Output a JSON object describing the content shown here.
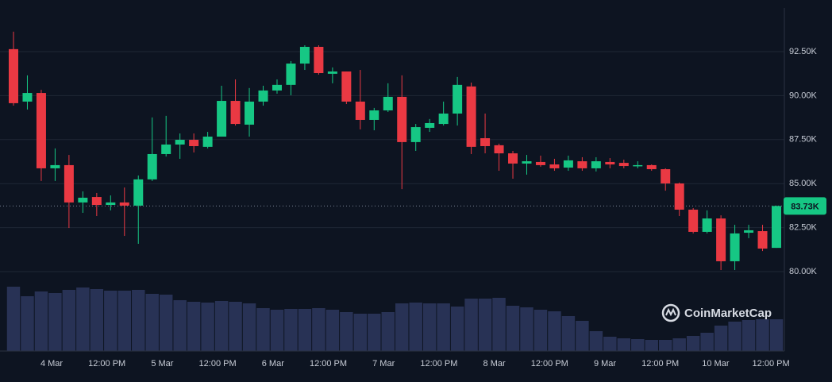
{
  "chart_data": {
    "type": "candlestick",
    "watermark": "CoinMarketCap",
    "up_color": "#16c784",
    "down_color": "#ea3943",
    "volume_color": "#283255",
    "grid": true,
    "ylim": [
      75490,
      94980
    ],
    "yticks": [
      {
        "value": 80000,
        "label": "80.00K"
      },
      {
        "value": 82500,
        "label": "82.50K"
      },
      {
        "value": 85000,
        "label": "85.00K"
      },
      {
        "value": 87500,
        "label": "87.50K"
      },
      {
        "value": 90000,
        "label": "90.00K"
      },
      {
        "value": 92500,
        "label": "92.50K"
      }
    ],
    "xtick_labels": [
      "4 Mar",
      "12:00 PM",
      "5 Mar",
      "12:00 PM",
      "6 Mar",
      "12:00 PM",
      "7 Mar",
      "12:00 PM",
      "8 Mar",
      "12:00 PM",
      "9 Mar",
      "12:00 PM",
      "10 Mar",
      "12:00 PM"
    ],
    "last_price": {
      "value": 83730,
      "label": "83.73K"
    },
    "open": [
      92640,
      89660,
      90150,
      85870,
      86050,
      83930,
      84240,
      83790,
      83930,
      83750,
      85240,
      86680,
      87220,
      87490,
      87090,
      87670,
      89700,
      88350,
      89660,
      90290,
      90610,
      91820,
      92770,
      91240,
      91370,
      89660,
      88620,
      89160,
      89930,
      87360,
      88170,
      88390,
      88980,
      90520,
      87580,
      87180,
      86720,
      86140,
      86230,
      86090,
      85910,
      86270,
      85870,
      86230,
      86180,
      86000,
      86050,
      85820,
      85010,
      83520,
      82260,
      83020,
      80590,
      82210,
      82300,
      81350
    ],
    "high": [
      93630,
      91150,
      90330,
      87000,
      86630,
      84560,
      84470,
      84330,
      84780,
      85460,
      88760,
      88850,
      87850,
      87850,
      87940,
      90560,
      90920,
      90430,
      90560,
      90920,
      91960,
      92860,
      92860,
      91600,
      91370,
      91460,
      89300,
      90700,
      91150,
      88390,
      88670,
      89660,
      91060,
      90740,
      88980,
      87270,
      86860,
      86630,
      86590,
      86410,
      86590,
      86500,
      86500,
      86450,
      86360,
      86270,
      86090,
      85870,
      85060,
      83610,
      83480,
      83200,
      82660,
      82660,
      82660,
      83750
    ],
    "low": [
      89430,
      89210,
      85150,
      85150,
      82480,
      83340,
      83160,
      83480,
      82030,
      81580,
      85150,
      86540,
      86410,
      86770,
      87000,
      87670,
      88300,
      87670,
      89430,
      90110,
      90020,
      91460,
      91190,
      90700,
      89520,
      88080,
      88030,
      89070,
      84690,
      86860,
      87940,
      88300,
      88300,
      86680,
      86720,
      85730,
      85280,
      85510,
      85960,
      85730,
      85730,
      85730,
      85690,
      85870,
      85870,
      85870,
      85730,
      84600,
      83160,
      82170,
      82170,
      80090,
      80090,
      81900,
      81170,
      81350
    ],
    "close": [
      89570,
      90150,
      85870,
      86050,
      83930,
      84200,
      83790,
      83930,
      83750,
      85240,
      86680,
      87220,
      87490,
      87130,
      87670,
      89700,
      88390,
      89660,
      90290,
      90610,
      91820,
      92770,
      91280,
      91370,
      89660,
      88620,
      89160,
      89930,
      87360,
      88210,
      88440,
      88980,
      90610,
      87090,
      87130,
      86720,
      86140,
      86270,
      86050,
      85870,
      86320,
      85870,
      86270,
      86090,
      86000,
      86050,
      85820,
      85010,
      83520,
      82260,
      83020,
      80590,
      82170,
      82350,
      81310,
      83730
    ],
    "volumes": [
      81,
      69,
      75,
      73,
      77,
      80,
      78,
      76,
      76,
      77,
      72,
      71,
      64,
      62,
      61,
      63,
      62,
      60,
      54,
      52,
      53,
      53,
      54,
      52,
      49,
      47,
      47,
      49,
      60,
      61,
      60,
      60,
      56,
      66,
      66,
      67,
      57,
      55,
      52,
      50,
      44,
      38,
      25,
      18,
      16,
      15,
      14,
      14,
      16,
      19,
      23,
      32,
      37,
      39,
      40,
      40
    ]
  }
}
